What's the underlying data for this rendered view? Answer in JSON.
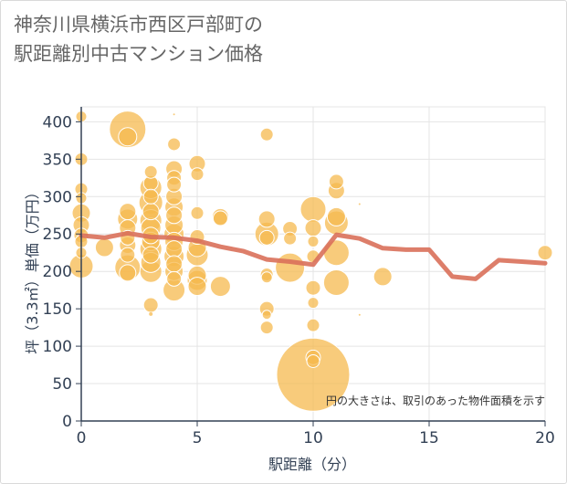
{
  "title": {
    "line1": "神奈川県横浜市西区戸部町の",
    "line2": "駅距離別中古マンション価格"
  },
  "chart_data": {
    "type": "scatter",
    "xlabel": "駅距離（分）",
    "ylabel": "坪（3.3㎡）単価（万円）",
    "xlim": [
      0,
      20
    ],
    "ylim": [
      0,
      420
    ],
    "x_ticks": [
      0,
      5,
      10,
      15,
      20
    ],
    "y_ticks": [
      0,
      50,
      100,
      150,
      200,
      250,
      300,
      350,
      400
    ],
    "note": "円の大きさは、取引のあった物件面積を示す",
    "colors": {
      "bubble": "#f5b94f",
      "bubble_stroke": "#ffffff",
      "line": "#d9705a",
      "grid": "#e4e4e4",
      "axis": "#334155"
    },
    "bubbles": [
      {
        "x": 0,
        "y": 407,
        "s": 6
      },
      {
        "x": 0,
        "y": 350,
        "s": 7
      },
      {
        "x": 0,
        "y": 310,
        "s": 7
      },
      {
        "x": 0,
        "y": 298,
        "s": 6
      },
      {
        "x": 0,
        "y": 278,
        "s": 10
      },
      {
        "x": 0,
        "y": 262,
        "s": 9
      },
      {
        "x": 0,
        "y": 248,
        "s": 8
      },
      {
        "x": 0,
        "y": 240,
        "s": 7
      },
      {
        "x": 0,
        "y": 225,
        "s": 6
      },
      {
        "x": 0,
        "y": 207,
        "s": 13
      },
      {
        "x": 1,
        "y": 232,
        "s": 10
      },
      {
        "x": 2,
        "y": 390,
        "s": 20
      },
      {
        "x": 2,
        "y": 380,
        "s": 10
      },
      {
        "x": 2,
        "y": 280,
        "s": 9
      },
      {
        "x": 2,
        "y": 270,
        "s": 11
      },
      {
        "x": 2,
        "y": 258,
        "s": 9
      },
      {
        "x": 2,
        "y": 245,
        "s": 8
      },
      {
        "x": 2,
        "y": 235,
        "s": 9
      },
      {
        "x": 2,
        "y": 222,
        "s": 8
      },
      {
        "x": 2,
        "y": 205,
        "s": 14
      },
      {
        "x": 2,
        "y": 198,
        "s": 9
      },
      {
        "x": 3,
        "y": 333,
        "s": 7
      },
      {
        "x": 3,
        "y": 318,
        "s": 8
      },
      {
        "x": 3,
        "y": 312,
        "s": 12
      },
      {
        "x": 3,
        "y": 300,
        "s": 8
      },
      {
        "x": 3,
        "y": 292,
        "s": 13
      },
      {
        "x": 3,
        "y": 280,
        "s": 9
      },
      {
        "x": 3,
        "y": 268,
        "s": 12
      },
      {
        "x": 3,
        "y": 258,
        "s": 11
      },
      {
        "x": 3,
        "y": 248,
        "s": 9
      },
      {
        "x": 3,
        "y": 240,
        "s": 10
      },
      {
        "x": 3,
        "y": 230,
        "s": 12
      },
      {
        "x": 3,
        "y": 222,
        "s": 9
      },
      {
        "x": 3,
        "y": 212,
        "s": 11
      },
      {
        "x": 3,
        "y": 200,
        "s": 12
      },
      {
        "x": 3,
        "y": 155,
        "s": 8
      },
      {
        "x": 3,
        "y": 143,
        "s": 2
      },
      {
        "x": 4,
        "y": 370,
        "s": 7
      },
      {
        "x": 4,
        "y": 337,
        "s": 9
      },
      {
        "x": 4,
        "y": 325,
        "s": 8
      },
      {
        "x": 4,
        "y": 316,
        "s": 8
      },
      {
        "x": 4,
        "y": 300,
        "s": 9
      },
      {
        "x": 4,
        "y": 286,
        "s": 10
      },
      {
        "x": 4,
        "y": 275,
        "s": 9
      },
      {
        "x": 4,
        "y": 262,
        "s": 10
      },
      {
        "x": 4,
        "y": 250,
        "s": 11
      },
      {
        "x": 4,
        "y": 240,
        "s": 10
      },
      {
        "x": 4,
        "y": 230,
        "s": 9
      },
      {
        "x": 4,
        "y": 220,
        "s": 11
      },
      {
        "x": 4,
        "y": 210,
        "s": 9
      },
      {
        "x": 4,
        "y": 200,
        "s": 10
      },
      {
        "x": 4,
        "y": 190,
        "s": 8
      },
      {
        "x": 4,
        "y": 175,
        "s": 12
      },
      {
        "x": 4,
        "y": 410,
        "s": 1
      },
      {
        "x": 5,
        "y": 344,
        "s": 9
      },
      {
        "x": 5,
        "y": 330,
        "s": 7
      },
      {
        "x": 5,
        "y": 278,
        "s": 7
      },
      {
        "x": 5,
        "y": 246,
        "s": 8
      },
      {
        "x": 5,
        "y": 232,
        "s": 10
      },
      {
        "x": 5,
        "y": 222,
        "s": 12
      },
      {
        "x": 5,
        "y": 195,
        "s": 10
      },
      {
        "x": 5,
        "y": 188,
        "s": 11
      },
      {
        "x": 5,
        "y": 180,
        "s": 10
      },
      {
        "x": 6,
        "y": 273,
        "s": 9
      },
      {
        "x": 6,
        "y": 271,
        "s": 8
      },
      {
        "x": 6,
        "y": 180,
        "s": 11
      },
      {
        "x": 8,
        "y": 383,
        "s": 7
      },
      {
        "x": 8,
        "y": 270,
        "s": 9
      },
      {
        "x": 8,
        "y": 250,
        "s": 13
      },
      {
        "x": 8,
        "y": 245,
        "s": 8
      },
      {
        "x": 8,
        "y": 196,
        "s": 7
      },
      {
        "x": 8,
        "y": 192,
        "s": 6
      },
      {
        "x": 8,
        "y": 150,
        "s": 8
      },
      {
        "x": 8,
        "y": 142,
        "s": 5
      },
      {
        "x": 8,
        "y": 125,
        "s": 7
      },
      {
        "x": 9,
        "y": 257,
        "s": 8
      },
      {
        "x": 9,
        "y": 244,
        "s": 7
      },
      {
        "x": 9,
        "y": 205,
        "s": 16
      },
      {
        "x": 10,
        "y": 283,
        "s": 14
      },
      {
        "x": 10,
        "y": 258,
        "s": 9
      },
      {
        "x": 10,
        "y": 240,
        "s": 6
      },
      {
        "x": 10,
        "y": 220,
        "s": 7
      },
      {
        "x": 10,
        "y": 178,
        "s": 8
      },
      {
        "x": 10,
        "y": 158,
        "s": 6
      },
      {
        "x": 10,
        "y": 128,
        "s": 7
      },
      {
        "x": 10,
        "y": 85,
        "s": 8
      },
      {
        "x": 10,
        "y": 80,
        "s": 7
      },
      {
        "x": 10,
        "y": 62,
        "s": 40
      },
      {
        "x": 11,
        "y": 320,
        "s": 8
      },
      {
        "x": 11,
        "y": 308,
        "s": 9
      },
      {
        "x": 11,
        "y": 273,
        "s": 10
      },
      {
        "x": 11,
        "y": 265,
        "s": 13
      },
      {
        "x": 11,
        "y": 225,
        "s": 14
      },
      {
        "x": 11,
        "y": 185,
        "s": 14
      },
      {
        "x": 12,
        "y": 290,
        "s": 1
      },
      {
        "x": 12,
        "y": 142,
        "s": 1
      },
      {
        "x": 13,
        "y": 193,
        "s": 10
      },
      {
        "x": 20,
        "y": 225,
        "s": 8
      }
    ],
    "line": {
      "x": [
        0,
        1,
        2,
        3,
        4,
        5,
        6,
        7,
        8,
        9,
        10,
        11,
        12,
        13,
        14,
        15,
        16,
        17,
        18,
        19,
        20
      ],
      "y": [
        248,
        245,
        251,
        246,
        245,
        241,
        233,
        227,
        216,
        213,
        209,
        249,
        244,
        231,
        229,
        229,
        193,
        190,
        215,
        213,
        211
      ]
    }
  }
}
